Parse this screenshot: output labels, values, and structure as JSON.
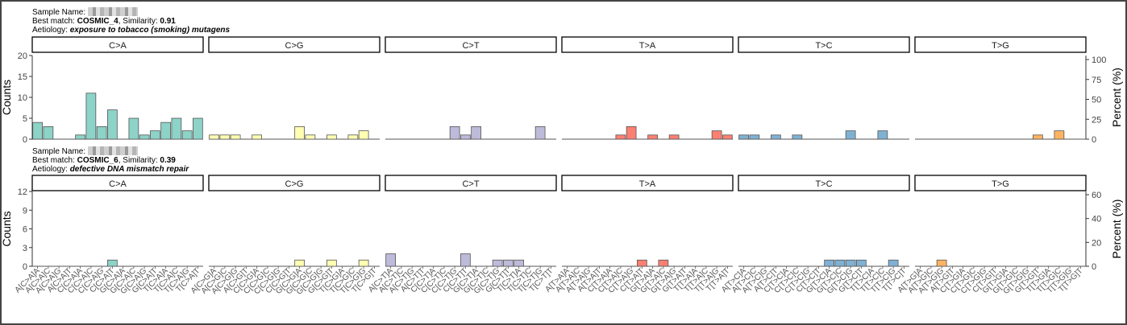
{
  "colors": {
    "C>A": "#8DD3C7",
    "C>G": "#FFFFB3",
    "C>T": "#BEBADA",
    "T>A": "#FB8072",
    "T>C": "#80B1D3",
    "T>G": "#FDB462"
  },
  "panels": [
    {
      "sample_label": "Sample Name:",
      "best_match_label": "Best match:",
      "best_match": "COSMIC_4",
      "similarity_label": ", Similarity:",
      "similarity": "0.91",
      "aetiology_label": "Aetiology:",
      "aetiology": "exposure to tobacco (smoking) mutagens"
    },
    {
      "sample_label": "Sample Name:",
      "best_match_label": "Best match:",
      "best_match": "COSMIC_6",
      "similarity_label": ", Similarity:",
      "similarity": "0.39",
      "aetiology_label": "Aetiology:",
      "aetiology": "defective DNA mismatch repair"
    }
  ],
  "chart_data": [
    {
      "type": "bar",
      "title": "",
      "ylabel": "Counts",
      "ylabel_right": "Percent (%)",
      "ylim": [
        0,
        20
      ],
      "yticks": [
        0,
        5,
        10,
        15,
        20
      ],
      "yticks_right": [
        "0",
        "25",
        "50",
        "75",
        "100"
      ],
      "facets": [
        {
          "name": "C>A",
          "values": [
            4,
            3,
            0,
            0,
            1,
            11,
            3,
            7,
            0,
            5,
            1,
            2,
            4,
            5,
            2,
            5
          ]
        },
        {
          "name": "C>G",
          "values": [
            1,
            1,
            1,
            0,
            1,
            0,
            0,
            0,
            3,
            1,
            0,
            1,
            0,
            1,
            2,
            0
          ]
        },
        {
          "name": "C>T",
          "values": [
            0,
            0,
            0,
            0,
            0,
            0,
            3,
            1,
            3,
            0,
            0,
            0,
            0,
            0,
            3,
            0
          ]
        },
        {
          "name": "T>A",
          "values": [
            0,
            0,
            0,
            0,
            0,
            1,
            3,
            0,
            1,
            0,
            1,
            0,
            0,
            0,
            2,
            1
          ]
        },
        {
          "name": "T>C",
          "values": [
            1,
            1,
            0,
            1,
            0,
            1,
            0,
            0,
            0,
            0,
            2,
            0,
            0,
            2,
            0,
            0
          ]
        },
        {
          "name": "T>G",
          "values": [
            0,
            0,
            0,
            0,
            0,
            0,
            0,
            0,
            0,
            0,
            0,
            1,
            0,
            2,
            0,
            0
          ]
        }
      ]
    },
    {
      "type": "bar",
      "title": "",
      "ylabel": "Counts",
      "ylabel_right": "Percent (%)",
      "ylim": [
        0,
        12
      ],
      "yticks": [
        0,
        3,
        6,
        9,
        12
      ],
      "yticks_right": [
        "0",
        "20",
        "40",
        "60"
      ],
      "facets": [
        {
          "name": "C>A",
          "values": [
            0,
            0,
            0,
            0,
            0,
            0,
            0,
            1,
            0,
            0,
            0,
            0,
            0,
            0,
            0,
            0
          ]
        },
        {
          "name": "C>G",
          "values": [
            0,
            0,
            0,
            0,
            0,
            0,
            0,
            0,
            1,
            0,
            0,
            1,
            0,
            0,
            1,
            0
          ]
        },
        {
          "name": "C>T",
          "values": [
            2,
            0,
            0,
            0,
            0,
            0,
            0,
            2,
            0,
            0,
            1,
            1,
            1,
            0,
            0,
            0
          ]
        },
        {
          "name": "T>A",
          "values": [
            0,
            0,
            0,
            0,
            0,
            0,
            0,
            1,
            0,
            1,
            0,
            0,
            0,
            0,
            0,
            0
          ]
        },
        {
          "name": "T>C",
          "values": [
            0,
            0,
            0,
            0,
            0,
            0,
            0,
            0,
            1,
            1,
            1,
            1,
            0,
            0,
            1,
            0
          ]
        },
        {
          "name": "T>G",
          "values": [
            0,
            0,
            1,
            0,
            0,
            0,
            0,
            0,
            0,
            0,
            0,
            0,
            0,
            0,
            0,
            0
          ]
        }
      ]
    }
  ],
  "x_labels": {
    "C>A": [
      "A[C>A]A",
      "A[C>A]C",
      "A[C>A]G",
      "A[C>A]T",
      "C[C>A]A",
      "C[C>A]C",
      "C[C>A]G",
      "C[C>A]T",
      "G[C>A]A",
      "G[C>A]C",
      "G[C>A]G",
      "G[C>A]T",
      "T[C>A]A",
      "T[C>A]C",
      "T[C>A]G",
      "T[C>A]T"
    ],
    "C>G": [
      "A[C>G]A",
      "A[C>G]C",
      "A[C>G]G",
      "A[C>G]T",
      "C[C>G]A",
      "C[C>G]C",
      "C[C>G]G",
      "C[C>G]T",
      "G[C>G]A",
      "G[C>G]C",
      "G[C>G]G",
      "G[C>G]T",
      "T[C>G]A",
      "T[C>G]C",
      "T[C>G]G",
      "T[C>G]T"
    ],
    "C>T": [
      "A[C>T]A",
      "A[C>T]C",
      "A[C>T]G",
      "A[C>T]T",
      "C[C>T]A",
      "C[C>T]C",
      "C[C>T]G",
      "C[C>T]T",
      "G[C>T]A",
      "G[C>T]C",
      "G[C>T]G",
      "G[C>T]T",
      "T[C>T]A",
      "T[C>T]C",
      "T[C>T]G",
      "T[C>T]T"
    ],
    "T>A": [
      "A[T>A]A",
      "A[T>A]C",
      "A[T>A]G",
      "A[T>A]T",
      "C[T>A]A",
      "C[T>A]C",
      "C[T>A]G",
      "C[T>A]T",
      "G[T>A]A",
      "G[T>A]C",
      "G[T>A]G",
      "G[T>A]T",
      "T[T>A]A",
      "T[T>A]C",
      "T[T>A]G",
      "T[T>A]T"
    ],
    "T>C": [
      "A[T>C]A",
      "A[T>C]C",
      "A[T>C]G",
      "A[T>C]T",
      "C[T>C]A",
      "C[T>C]C",
      "C[T>C]G",
      "C[T>C]T",
      "G[T>C]A",
      "G[T>C]C",
      "G[T>C]G",
      "G[T>C]T",
      "T[T>C]A",
      "T[T>C]C",
      "T[T>C]G",
      "T[T>C]T"
    ],
    "T>G": [
      "A[T>G]A",
      "A[T>G]C",
      "A[T>G]G",
      "A[T>G]T",
      "C[T>G]A",
      "C[T>G]C",
      "C[T>G]G",
      "C[T>G]T",
      "G[T>G]A",
      "G[T>G]C",
      "G[T>G]G",
      "G[T>G]T",
      "T[T>G]A",
      "T[T>G]C",
      "T[T>G]G",
      "T[T>G]T"
    ]
  }
}
